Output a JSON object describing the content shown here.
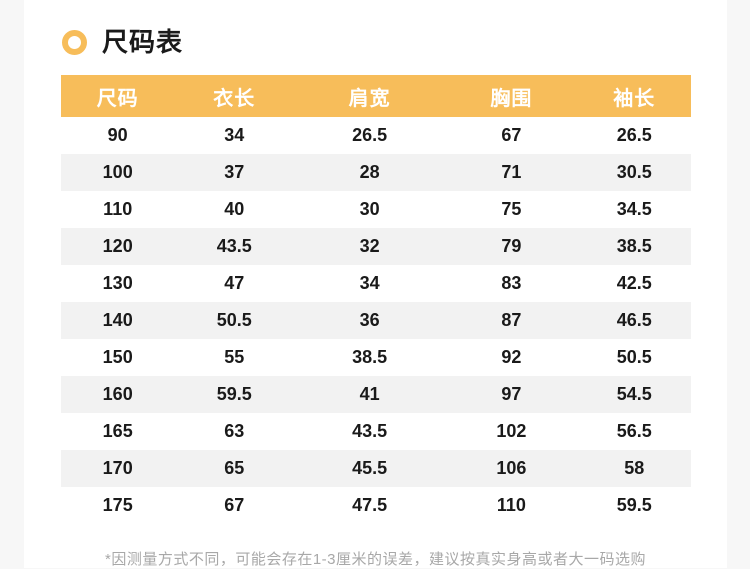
{
  "colors": {
    "accent": "#f7bd5a",
    "page_background": "#f7f7f7",
    "card_background": "#ffffff",
    "stripe": "#f2f2f2",
    "text": "#1a1a1a",
    "footnote_text": "#a8a8a8"
  },
  "section": {
    "title": "尺码表",
    "bullet_icon": "ring-icon"
  },
  "size_table": {
    "headers": [
      "尺码",
      "衣长",
      "肩宽",
      "胸围",
      "袖长"
    ],
    "rows": [
      [
        "90",
        "34",
        "26.5",
        "67",
        "26.5"
      ],
      [
        "100",
        "37",
        "28",
        "71",
        "30.5"
      ],
      [
        "110",
        "40",
        "30",
        "75",
        "34.5"
      ],
      [
        "120",
        "43.5",
        "32",
        "79",
        "38.5"
      ],
      [
        "130",
        "47",
        "34",
        "83",
        "42.5"
      ],
      [
        "140",
        "50.5",
        "36",
        "87",
        "46.5"
      ],
      [
        "150",
        "55",
        "38.5",
        "92",
        "50.5"
      ],
      [
        "160",
        "59.5",
        "41",
        "97",
        "54.5"
      ],
      [
        "165",
        "63",
        "43.5",
        "102",
        "56.5"
      ],
      [
        "170",
        "65",
        "45.5",
        "106",
        "58"
      ],
      [
        "175",
        "67",
        "47.5",
        "110",
        "59.5"
      ]
    ]
  },
  "footnote": "*因测量方式不同，可能会存在1-3厘米的误差，建议按真实身高或者大一码选购"
}
